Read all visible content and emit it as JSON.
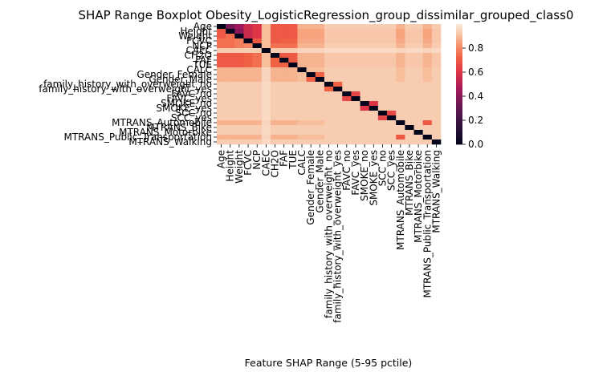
{
  "chart_data": {
    "type": "heatmap",
    "title": "SHAP Range Boxplot Obesity_LogisticRegression_group_dissimilar_grouped_class0",
    "xlabel": "Feature SHAP Range (5-95 pctile)",
    "ylabel": "",
    "features": [
      "Age",
      "Height",
      "Weight",
      "FCVC",
      "NCP",
      "CAEC",
      "CH2O",
      "FAF",
      "TUE",
      "CALC",
      "Gender_Female",
      "Gender_Male",
      "family_history_with_overweight_no",
      "family_history_with_overweight_yes",
      "FAVC_no",
      "FAVC_yes",
      "SMOKE_no",
      "SMOKE_yes",
      "SCC_no",
      "SCC_yes",
      "MTRANS_Automobile",
      "MTRANS_Bike",
      "MTRANS_Motorbike",
      "MTRANS_Public_Transportation",
      "MTRANS_Walking"
    ],
    "values": [
      [
        0.0,
        0.35,
        0.45,
        0.55,
        0.6,
        0.9,
        0.7,
        0.7,
        0.7,
        0.88,
        0.88,
        0.88,
        0.93,
        0.93,
        0.93,
        0.93,
        0.93,
        0.93,
        0.93,
        0.93,
        0.88,
        0.93,
        0.93,
        0.88,
        0.93
      ],
      [
        0.7,
        0.0,
        0.4,
        0.55,
        0.6,
        0.9,
        0.7,
        0.7,
        0.7,
        0.85,
        0.85,
        0.85,
        0.92,
        0.92,
        0.92,
        0.92,
        0.92,
        0.92,
        0.92,
        0.92,
        0.85,
        0.92,
        0.92,
        0.85,
        0.92
      ],
      [
        0.7,
        0.75,
        0.0,
        0.55,
        0.6,
        0.9,
        0.7,
        0.7,
        0.7,
        0.85,
        0.85,
        0.85,
        0.92,
        0.92,
        0.92,
        0.92,
        0.92,
        0.92,
        0.92,
        0.92,
        0.85,
        0.92,
        0.92,
        0.85,
        0.92
      ],
      [
        0.75,
        0.75,
        0.78,
        0.0,
        0.7,
        0.9,
        0.7,
        0.72,
        0.72,
        0.86,
        0.86,
        0.86,
        0.92,
        0.92,
        0.92,
        0.92,
        0.92,
        0.92,
        0.92,
        0.92,
        0.86,
        0.92,
        0.92,
        0.86,
        0.92
      ],
      [
        0.75,
        0.75,
        0.78,
        0.8,
        0.0,
        0.9,
        0.75,
        0.75,
        0.75,
        0.88,
        0.88,
        0.88,
        0.93,
        0.93,
        0.93,
        0.93,
        0.93,
        0.93,
        0.93,
        0.93,
        0.88,
        0.93,
        0.93,
        0.88,
        0.93
      ],
      [
        0.93,
        0.93,
        0.93,
        0.93,
        0.93,
        0.0,
        0.93,
        0.93,
        0.93,
        0.95,
        0.95,
        0.95,
        0.96,
        0.96,
        0.96,
        0.96,
        0.96,
        0.96,
        0.96,
        0.96,
        0.95,
        0.96,
        0.96,
        0.95,
        0.96
      ],
      [
        0.7,
        0.7,
        0.7,
        0.72,
        0.75,
        0.9,
        0.0,
        0.7,
        0.7,
        0.88,
        0.88,
        0.88,
        0.92,
        0.92,
        0.92,
        0.92,
        0.92,
        0.92,
        0.92,
        0.92,
        0.88,
        0.92,
        0.92,
        0.88,
        0.92
      ],
      [
        0.7,
        0.7,
        0.7,
        0.72,
        0.75,
        0.9,
        0.72,
        0.0,
        0.7,
        0.88,
        0.88,
        0.88,
        0.92,
        0.92,
        0.92,
        0.92,
        0.92,
        0.92,
        0.92,
        0.92,
        0.88,
        0.92,
        0.92,
        0.88,
        0.92
      ],
      [
        0.7,
        0.7,
        0.7,
        0.72,
        0.75,
        0.9,
        0.72,
        0.72,
        0.0,
        0.88,
        0.88,
        0.88,
        0.92,
        0.92,
        0.92,
        0.92,
        0.92,
        0.92,
        0.92,
        0.92,
        0.88,
        0.92,
        0.92,
        0.88,
        0.92
      ],
      [
        0.88,
        0.88,
        0.88,
        0.88,
        0.88,
        0.95,
        0.88,
        0.88,
        0.88,
        0.0,
        0.9,
        0.9,
        0.93,
        0.93,
        0.93,
        0.93,
        0.93,
        0.93,
        0.93,
        0.93,
        0.9,
        0.93,
        0.93,
        0.9,
        0.93
      ],
      [
        0.88,
        0.88,
        0.88,
        0.88,
        0.88,
        0.95,
        0.88,
        0.88,
        0.88,
        0.9,
        0.0,
        0.72,
        0.93,
        0.93,
        0.93,
        0.93,
        0.93,
        0.93,
        0.93,
        0.93,
        0.9,
        0.93,
        0.93,
        0.9,
        0.93
      ],
      [
        0.88,
        0.88,
        0.88,
        0.88,
        0.88,
        0.95,
        0.88,
        0.88,
        0.88,
        0.9,
        0.72,
        0.0,
        0.93,
        0.93,
        0.93,
        0.93,
        0.93,
        0.93,
        0.93,
        0.93,
        0.9,
        0.93,
        0.93,
        0.9,
        0.93
      ],
      [
        0.93,
        0.93,
        0.93,
        0.93,
        0.93,
        0.96,
        0.93,
        0.93,
        0.93,
        0.93,
        0.93,
        0.93,
        0.0,
        0.72,
        0.93,
        0.93,
        0.93,
        0.93,
        0.93,
        0.93,
        0.93,
        0.93,
        0.93,
        0.93,
        0.93
      ],
      [
        0.93,
        0.93,
        0.93,
        0.93,
        0.93,
        0.96,
        0.93,
        0.93,
        0.93,
        0.93,
        0.93,
        0.93,
        0.72,
        0.0,
        0.93,
        0.93,
        0.93,
        0.93,
        0.93,
        0.93,
        0.93,
        0.93,
        0.93,
        0.93,
        0.93
      ],
      [
        0.93,
        0.93,
        0.93,
        0.93,
        0.93,
        0.96,
        0.93,
        0.93,
        0.93,
        0.93,
        0.93,
        0.93,
        0.93,
        0.93,
        0.0,
        0.65,
        0.93,
        0.93,
        0.93,
        0.93,
        0.93,
        0.93,
        0.93,
        0.93,
        0.93
      ],
      [
        0.93,
        0.93,
        0.93,
        0.93,
        0.93,
        0.96,
        0.93,
        0.93,
        0.93,
        0.93,
        0.93,
        0.93,
        0.93,
        0.93,
        0.65,
        0.0,
        0.93,
        0.93,
        0.93,
        0.93,
        0.93,
        0.93,
        0.93,
        0.93,
        0.93
      ],
      [
        0.93,
        0.93,
        0.93,
        0.93,
        0.93,
        0.96,
        0.93,
        0.93,
        0.93,
        0.93,
        0.93,
        0.93,
        0.93,
        0.93,
        0.93,
        0.93,
        0.0,
        0.6,
        0.93,
        0.93,
        0.93,
        0.93,
        0.93,
        0.93,
        0.93
      ],
      [
        0.93,
        0.93,
        0.93,
        0.93,
        0.93,
        0.96,
        0.93,
        0.93,
        0.93,
        0.93,
        0.93,
        0.93,
        0.93,
        0.93,
        0.93,
        0.93,
        0.6,
        0.0,
        0.93,
        0.93,
        0.93,
        0.93,
        0.93,
        0.93,
        0.93
      ],
      [
        0.93,
        0.93,
        0.93,
        0.93,
        0.93,
        0.96,
        0.93,
        0.93,
        0.93,
        0.93,
        0.93,
        0.93,
        0.93,
        0.93,
        0.93,
        0.93,
        0.93,
        0.93,
        0.0,
        0.65,
        0.93,
        0.93,
        0.93,
        0.93,
        0.93
      ],
      [
        0.93,
        0.93,
        0.93,
        0.93,
        0.93,
        0.96,
        0.93,
        0.93,
        0.93,
        0.93,
        0.93,
        0.93,
        0.93,
        0.93,
        0.93,
        0.93,
        0.93,
        0.93,
        0.65,
        0.0,
        0.93,
        0.93,
        0.93,
        0.93,
        0.93
      ],
      [
        0.88,
        0.88,
        0.88,
        0.88,
        0.88,
        0.95,
        0.88,
        0.88,
        0.88,
        0.9,
        0.9,
        0.9,
        0.93,
        0.93,
        0.93,
        0.93,
        0.93,
        0.93,
        0.93,
        0.93,
        0.0,
        0.93,
        0.93,
        0.7,
        0.93
      ],
      [
        0.93,
        0.93,
        0.93,
        0.93,
        0.93,
        0.96,
        0.93,
        0.93,
        0.93,
        0.93,
        0.93,
        0.93,
        0.93,
        0.93,
        0.93,
        0.93,
        0.93,
        0.93,
        0.93,
        0.93,
        0.93,
        0.0,
        0.93,
        0.93,
        0.93
      ],
      [
        0.93,
        0.93,
        0.93,
        0.93,
        0.93,
        0.96,
        0.93,
        0.93,
        0.93,
        0.93,
        0.93,
        0.93,
        0.93,
        0.93,
        0.93,
        0.93,
        0.93,
        0.93,
        0.93,
        0.93,
        0.93,
        0.93,
        0.0,
        0.93,
        0.93
      ],
      [
        0.88,
        0.88,
        0.88,
        0.88,
        0.88,
        0.95,
        0.88,
        0.88,
        0.88,
        0.9,
        0.9,
        0.9,
        0.93,
        0.93,
        0.93,
        0.93,
        0.93,
        0.93,
        0.93,
        0.93,
        0.7,
        0.93,
        0.93,
        0.0,
        0.93
      ],
      [
        0.93,
        0.93,
        0.93,
        0.93,
        0.93,
        0.96,
        0.93,
        0.93,
        0.93,
        0.93,
        0.93,
        0.93,
        0.93,
        0.93,
        0.93,
        0.93,
        0.93,
        0.93,
        0.93,
        0.93,
        0.93,
        0.93,
        0.93,
        0.93,
        0.0
      ]
    ],
    "colorbar": {
      "vmin": 0.0,
      "vmax": 1.0,
      "ticks": [
        "0.0",
        "0.2",
        "0.4",
        "0.6",
        "0.8"
      ],
      "tick_values": [
        0.0,
        0.2,
        0.4,
        0.6,
        0.8
      ]
    },
    "grid": false,
    "legend": "colorbar-right"
  }
}
